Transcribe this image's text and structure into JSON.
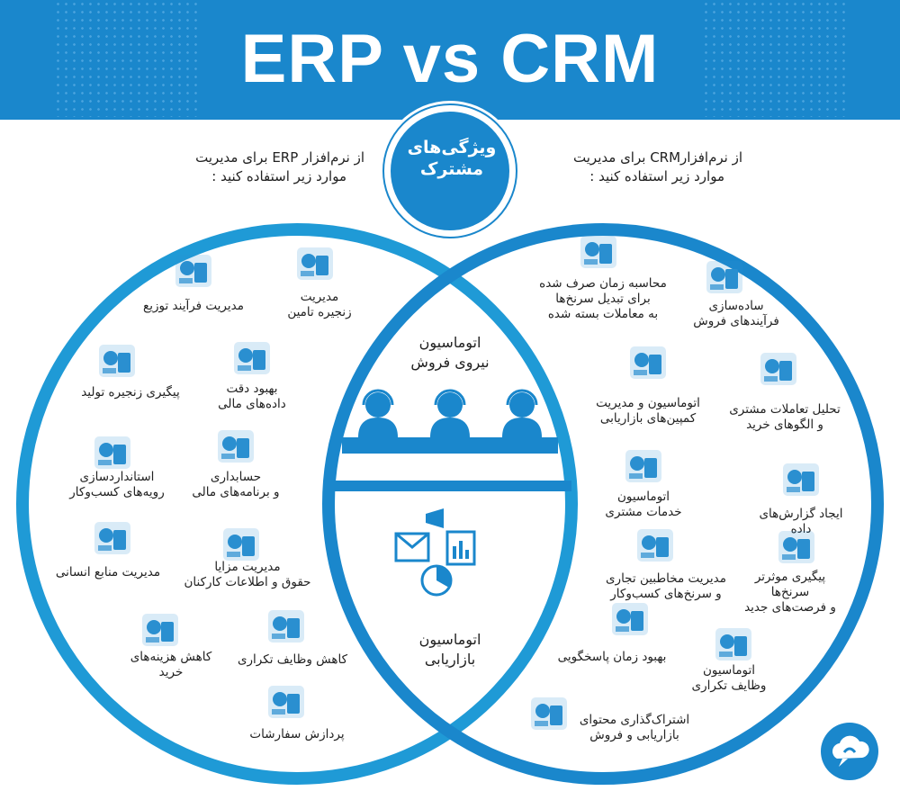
{
  "title": "ERP vs CRM",
  "colors": {
    "primary": "#1a87cc",
    "accent": "#1f9ad6",
    "icon": "#2a8fd0"
  },
  "common": {
    "badge_line1": "ویژگی‌های",
    "badge_line2": "مشترک",
    "items": [
      {
        "label": "اتوماسیون\nنیروی فروش",
        "icon": "sales-team-headset-icon"
      },
      {
        "label": "اتوماسیون\nبازاریابی",
        "icon": "marketing-megaphone-icon"
      }
    ]
  },
  "erp": {
    "intro_line1": "از نرم‌افزار ERP برای مدیریت",
    "intro_line2": "موارد زیر استفاده کنید :",
    "items": [
      {
        "label": "مدیریت\nزنجیره تامین",
        "icon": "supply-chain-magnet-icon"
      },
      {
        "label": "مدیریت فرآیند توزیع",
        "icon": "database-network-icon"
      },
      {
        "label": "پیگیری زنجیره تولید",
        "icon": "factory-box-icon"
      },
      {
        "label": "بهبود دقت\nداده‌های مالی",
        "icon": "dollar-chart-icon"
      },
      {
        "label": "استانداردسازی\nرویه‌های کسب‌وکار",
        "icon": "document-checklist-icon"
      },
      {
        "label": "حسابداری\nو برنامه‌های مالی",
        "icon": "calculator-icon"
      },
      {
        "label": "مدیریت منابع انسانی",
        "icon": "people-network-icon"
      },
      {
        "label": "مدیریت مزایا\nحقوق و اطلاعات کارکنان",
        "icon": "payroll-icon"
      },
      {
        "label": "کاهش هزینه‌های\nخرید",
        "icon": "bar-chart-icon"
      },
      {
        "label": "کاهش وظایف تکراری",
        "icon": "infinity-loop-icon"
      },
      {
        "label": "پردازش سفارشات",
        "icon": "workflow-icon"
      }
    ]
  },
  "crm": {
    "intro_line1": "از نرم‌افزارCRM برای مدیریت",
    "intro_line2": "موارد زیر استفاده کنید :",
    "items": [
      {
        "label": "محاسبه زمان صرف شده\nبرای تبدیل سرنخ‌ها\nبه معاملات بسته شده",
        "icon": "hourglass-money-icon"
      },
      {
        "label": "ساده‌سازی\nفرآیندهای فروش",
        "icon": "agent-headset-icon"
      },
      {
        "label": "اتوماسیون و مدیریت\nکمپین‌های بازاریابی",
        "icon": "megaphone-icon"
      },
      {
        "label": "تحلیل تعاملات مشتری\nو الگوهای خرید",
        "icon": "report-magnifier-icon"
      },
      {
        "label": "اتوماسیون\nخدمات مشتری",
        "icon": "customer-chat-icon"
      },
      {
        "label": "ایجاد گزارش‌های داده",
        "icon": "report-pie-icon"
      },
      {
        "label": "مدیریت مخاطبین تجاری\nو سرنخ‌های کسب‌وکار",
        "icon": "handshake-icon"
      },
      {
        "label": "پیگیری موثرتر سرنخ‌ها\nو فرصت‌های جدید",
        "icon": "funnel-icon"
      },
      {
        "label": "بهبود زمان پاسخگویی",
        "icon": "hand-pointer-icon"
      },
      {
        "label": "اتوماسیون\nوظایف تکراری",
        "icon": "touch-gear-icon"
      },
      {
        "label": "اشتراک‌گذاری محتوای\nبازاریابی و فروش",
        "icon": "presentation-icon"
      }
    ]
  }
}
